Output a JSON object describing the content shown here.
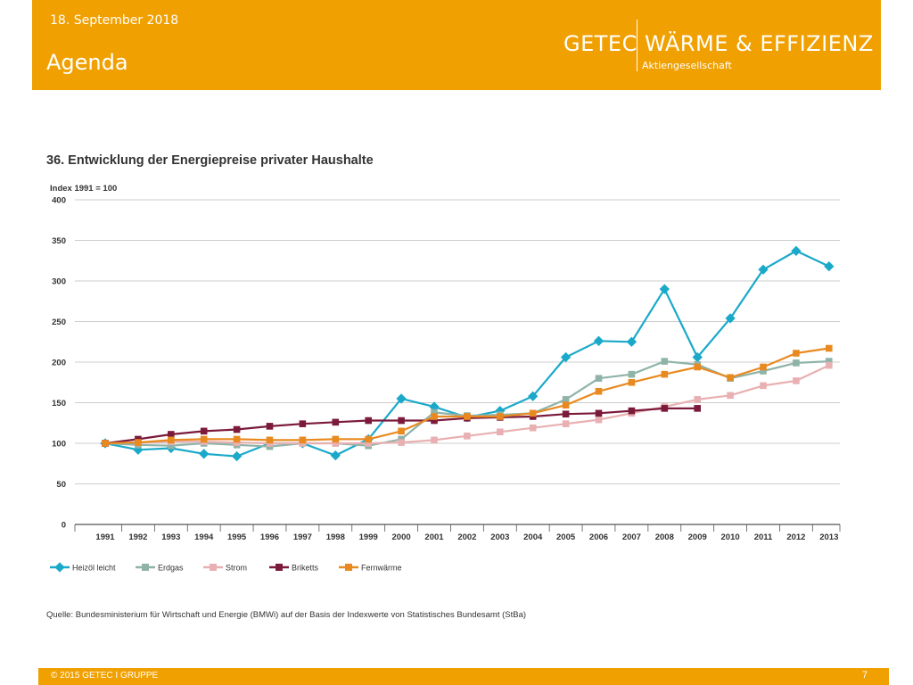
{
  "header": {
    "date": "18. September 2018",
    "title": "Agenda",
    "logo_main": "GETEC WÄRME & EFFIZIENZ",
    "logo_sub": "Aktiengesellschaft"
  },
  "chart_data": {
    "type": "line",
    "title": "36. Entwicklung der Energiepreise privater Haushalte",
    "ylabel": "Index 1991 = 100",
    "xlabel": "",
    "ylim": [
      0,
      400
    ],
    "yticks": [
      0,
      50,
      100,
      150,
      200,
      250,
      300,
      350,
      400
    ],
    "grid": "horizontal",
    "legend": "bottom",
    "x": [
      "1991",
      "1992",
      "1993",
      "1994",
      "1995",
      "1996",
      "1997",
      "1998",
      "1999",
      "2000",
      "2001",
      "2002",
      "2003",
      "2004",
      "2005",
      "2006",
      "2007",
      "2008",
      "2009",
      "2010",
      "2011",
      "2012",
      "2013"
    ],
    "series": [
      {
        "name": "Heizöl leicht",
        "color": "#1aa9c9",
        "values": [
          100,
          92,
          94,
          87,
          84,
          100,
          100,
          85,
          105,
          155,
          145,
          132,
          140,
          158,
          206,
          226,
          225,
          290,
          206,
          254,
          314,
          337,
          318
        ]
      },
      {
        "name": "Erdgas",
        "color": "#8fb3a8",
        "values": [
          100,
          98,
          97,
          100,
          98,
          96,
          100,
          100,
          97,
          105,
          138,
          134,
          135,
          137,
          154,
          180,
          185,
          201,
          197,
          180,
          189,
          199,
          201
        ]
      },
      {
        "name": "Strom",
        "color": "#e8b0b2",
        "values": [
          100,
          101,
          102,
          102,
          101,
          100,
          100,
          100,
          100,
          101,
          104,
          109,
          114,
          119,
          124,
          129,
          137,
          145,
          154,
          159,
          171,
          177,
          196
        ]
      },
      {
        "name": "Briketts",
        "color": "#7b1a3b",
        "values": [
          100,
          105,
          111,
          115,
          117,
          121,
          124,
          126,
          128,
          128,
          128,
          131,
          132,
          133,
          136,
          137,
          140,
          143,
          143,
          null,
          null,
          null,
          null
        ]
      },
      {
        "name": "Fernwärme",
        "color": "#e98a20",
        "values": [
          100,
          101,
          104,
          105,
          105,
          104,
          104,
          105,
          105,
          115,
          133,
          133,
          133,
          137,
          147,
          164,
          175,
          185,
          194,
          181,
          194,
          211,
          217
        ]
      }
    ],
    "source": "Quelle: Bundesministerium für Wirtschaft und Energie (BMWi) auf der Basis der Indexwerte von Statistisches Bundesamt (StBa)"
  },
  "footer": {
    "copyright": "© 2015 GETEC I GRUPPE",
    "page": "7"
  }
}
